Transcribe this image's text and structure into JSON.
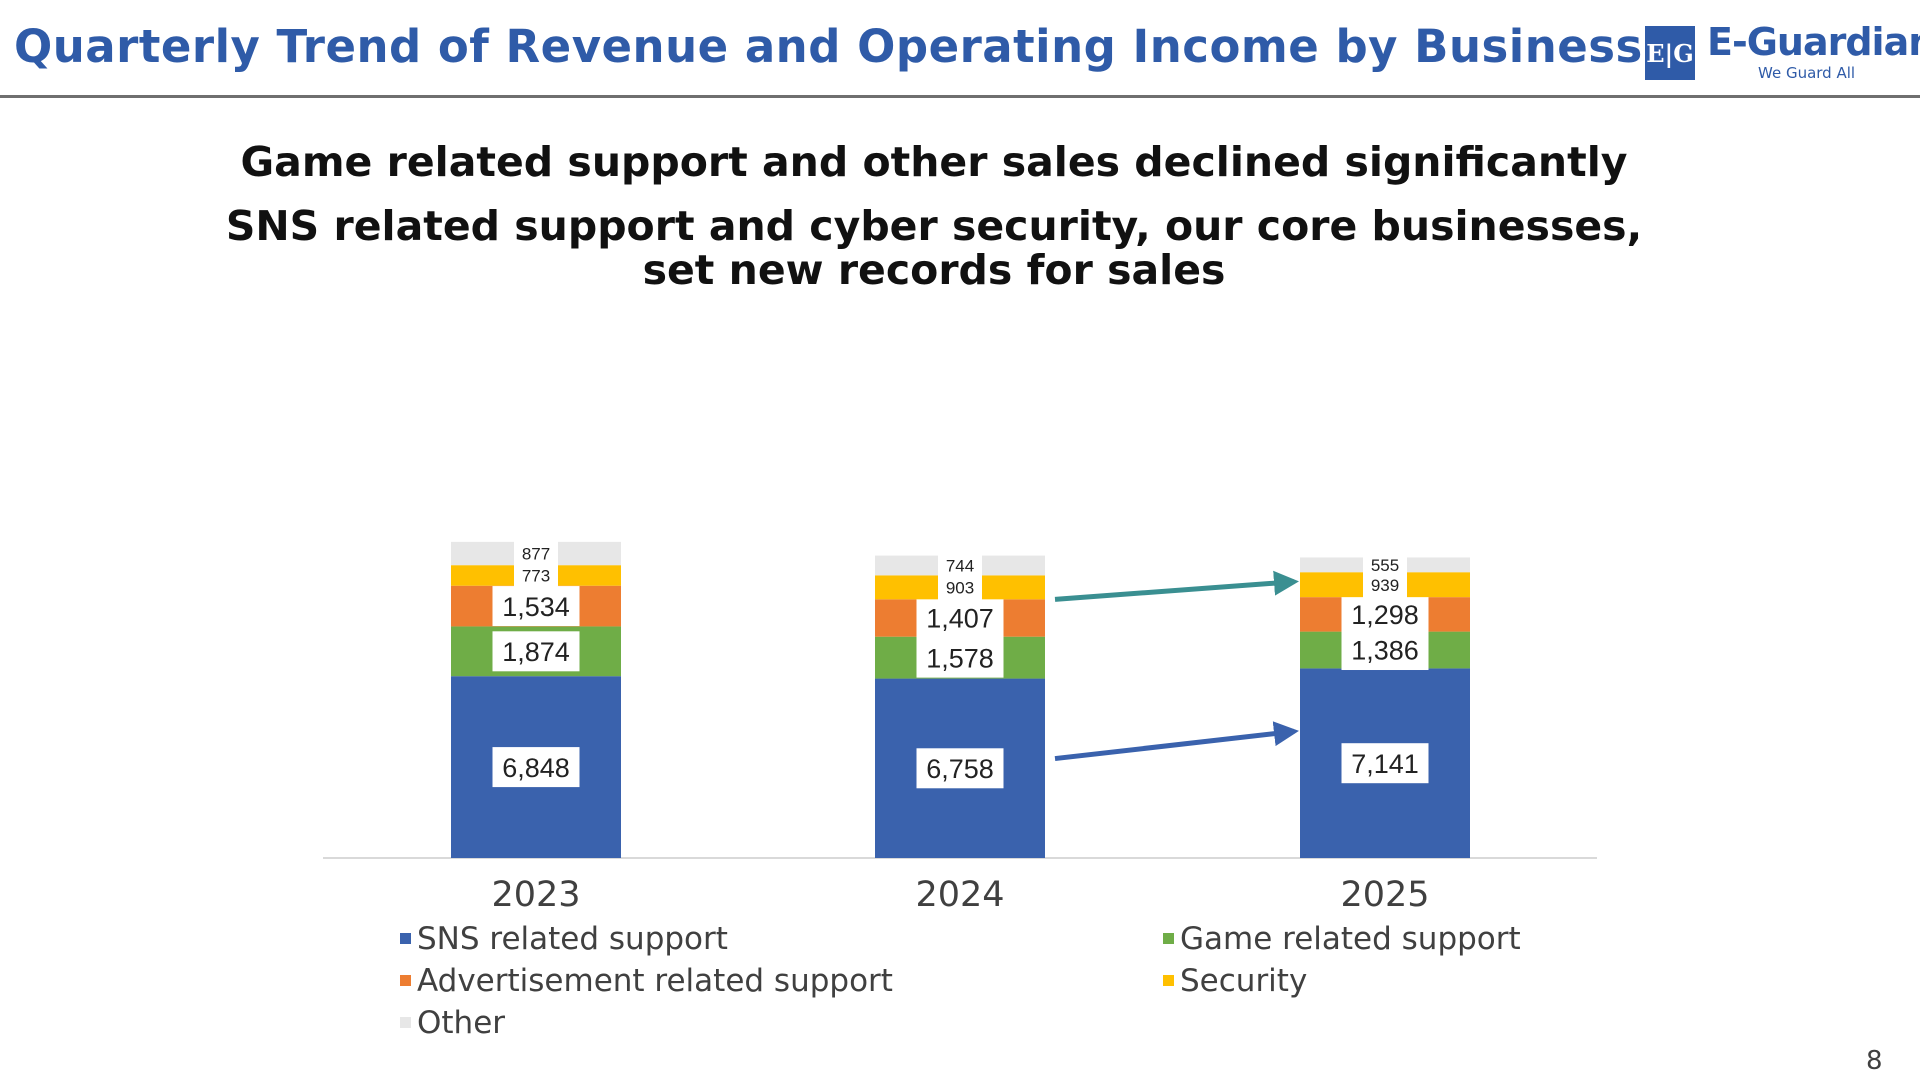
{
  "header": {
    "title": "Quarterly Trend of Revenue and Operating Income by Business",
    "logo": {
      "mark": "E|G",
      "name": "E-Guardian",
      "tagline": "We Guard All"
    }
  },
  "subtitle": {
    "line1": "Game related support and other sales declined significantly",
    "line2": "SNS related support and cyber security, our core businesses,",
    "line3": "set new records for sales"
  },
  "chart_data": {
    "type": "bar",
    "stacked": true,
    "categories": [
      "2023",
      "2024",
      "2025"
    ],
    "series": [
      {
        "name": "SNS related support",
        "color": "#3a62ad",
        "values": [
          6848,
          6758,
          7141
        ],
        "labels": [
          "6,848",
          "6,758",
          "7,141"
        ]
      },
      {
        "name": "Game related support",
        "color": "#6fad47",
        "values": [
          1874,
          1578,
          1386
        ],
        "labels": [
          "1,874",
          "1,578",
          "1,386"
        ]
      },
      {
        "name": "Advertisement related support",
        "color": "#ed7d31",
        "values": [
          1534,
          1407,
          1298
        ],
        "labels": [
          "1,534",
          "1,407",
          "1,298"
        ]
      },
      {
        "name": "Security",
        "color": "#ffc000",
        "values": [
          773,
          903,
          939
        ],
        "labels": [
          "773",
          "903",
          "939"
        ]
      },
      {
        "name": "Other",
        "color": "#e7e7e7",
        "values": [
          877,
          744,
          555
        ],
        "labels": [
          "877",
          "744",
          "555"
        ]
      }
    ],
    "legend_position": "bottom",
    "grid": false,
    "arrows": [
      {
        "series": "Security",
        "from": "2024",
        "to": "2025",
        "color": "#3a8f91"
      },
      {
        "series": "SNS related support",
        "from": "2024",
        "to": "2025",
        "color": "#3a62ad"
      }
    ]
  },
  "page_number": "8"
}
